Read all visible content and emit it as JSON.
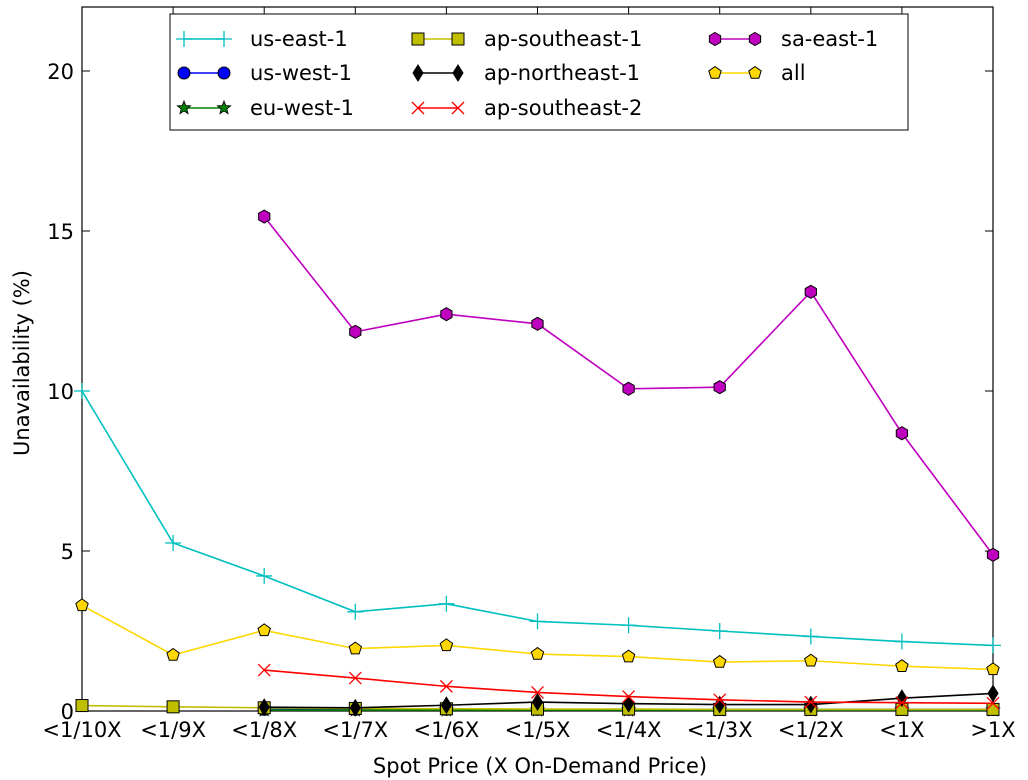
{
  "chart_data": {
    "type": "line",
    "title": "",
    "xlabel": "Spot Price (X On-Demand Price)",
    "ylabel": "Unavailability (%)",
    "categories": [
      "<1/10X",
      "<1/9X",
      "<1/8X",
      "<1/7X",
      "<1/6X",
      "<1/5X",
      "<1/4X",
      "<1/3X",
      "<1/2X",
      "<1X",
      ">1X"
    ],
    "ylim": [
      0,
      22
    ],
    "yticks": [
      0,
      5,
      10,
      15,
      20
    ],
    "grid": false,
    "legend_position": "top",
    "series": [
      {
        "name": "us-east-1",
        "color": "#00bfbf",
        "marker": "plus",
        "values": [
          10.0,
          5.25,
          4.22,
          3.1,
          3.35,
          2.8,
          2.68,
          2.5,
          2.33,
          2.17,
          2.05
        ]
      },
      {
        "name": "us-west-1",
        "color": "#0000ff",
        "marker": "circle",
        "values": [
          null,
          null,
          0.05,
          0.05,
          0.05,
          0.05,
          0.05,
          0.05,
          0.05,
          0.05,
          0.05
        ]
      },
      {
        "name": "eu-west-1",
        "color": "#008000",
        "marker": "star",
        "values": [
          null,
          null,
          0.03,
          0.03,
          0.03,
          0.03,
          0.03,
          0.03,
          0.03,
          0.03,
          0.03
        ]
      },
      {
        "name": "ap-southeast-1",
        "color": "#bfbf00",
        "marker": "square",
        "values": [
          0.17,
          0.13,
          0.1,
          0.08,
          0.07,
          0.06,
          0.06,
          0.05,
          0.05,
          0.05,
          0.05
        ]
      },
      {
        "name": "ap-northeast-1",
        "color": "#000000",
        "marker": "diamond",
        "values": [
          null,
          null,
          0.12,
          0.1,
          0.18,
          0.28,
          0.23,
          0.2,
          0.2,
          0.4,
          0.55
        ]
      },
      {
        "name": "ap-southeast-2",
        "color": "#ff0000",
        "marker": "x",
        "values": [
          null,
          null,
          1.28,
          1.03,
          0.77,
          0.58,
          0.45,
          0.35,
          0.28,
          0.26,
          0.24
        ]
      },
      {
        "name": "sa-east-1",
        "color": "#bf00bf",
        "marker": "hexagon",
        "values": [
          null,
          null,
          15.45,
          11.85,
          12.4,
          12.1,
          10.07,
          10.12,
          13.1,
          8.68,
          4.88
        ]
      },
      {
        "name": "all",
        "color": "#ffd700",
        "marker": "pentagon",
        "values": [
          3.3,
          1.75,
          2.52,
          1.95,
          2.05,
          1.78,
          1.7,
          1.53,
          1.57,
          1.4,
          1.3
        ]
      }
    ]
  }
}
